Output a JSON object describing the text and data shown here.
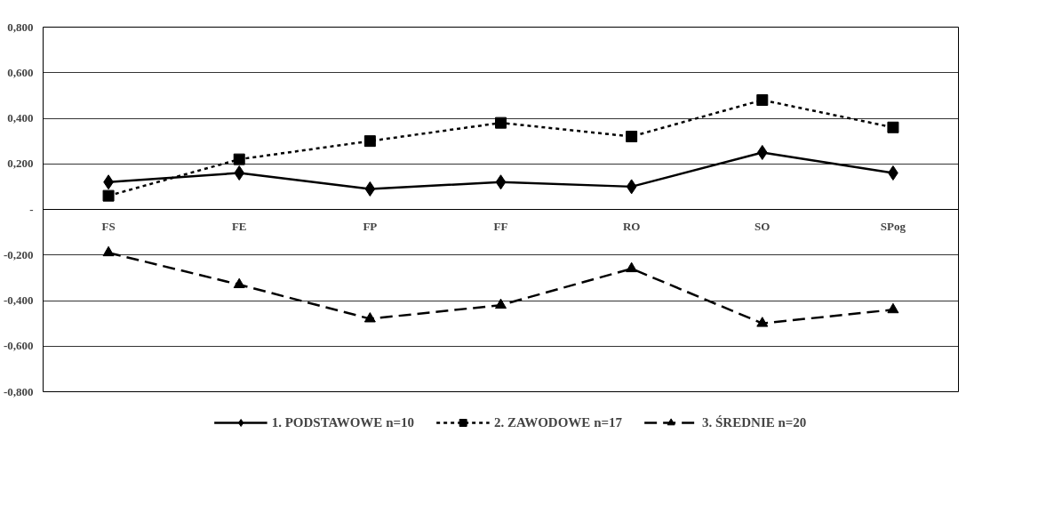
{
  "chart_data": {
    "type": "line",
    "categories": [
      "FS",
      "FE",
      "FP",
      "FF",
      "RO",
      "SO",
      "SPog"
    ],
    "series": [
      {
        "name": "1. PODSTAWOWE n=10",
        "color": "#000000",
        "marker": "diamond",
        "line_style": "solid",
        "values": [
          0.12,
          0.16,
          0.09,
          0.12,
          0.1,
          0.25,
          0.16
        ]
      },
      {
        "name": "2. ZAWODOWE n=17",
        "color": "#000000",
        "marker": "square",
        "line_style": "dotted",
        "values": [
          0.06,
          0.22,
          0.3,
          0.38,
          0.32,
          0.48,
          0.36
        ]
      },
      {
        "name": "3. ŚREDNIE n=20",
        "color": "#000000",
        "marker": "triangle",
        "line_style": "dashed",
        "values": [
          -0.19,
          -0.33,
          -0.48,
          -0.42,
          -0.26,
          -0.5,
          -0.44
        ]
      }
    ],
    "ylim": [
      -0.8,
      0.8
    ],
    "yticks": [
      {
        "value": -0.8,
        "label": "-0,800"
      },
      {
        "value": -0.6,
        "label": "-0,600"
      },
      {
        "value": -0.4,
        "label": "-0,400"
      },
      {
        "value": -0.2,
        "label": "-0,200"
      },
      {
        "value": 0,
        "label": "-"
      },
      {
        "value": 0.2,
        "label": "0,200"
      },
      {
        "value": 0.4,
        "label": "0,400"
      },
      {
        "value": 0.6,
        "label": "0,600"
      },
      {
        "value": 0.8,
        "label": "0,800"
      }
    ],
    "grid": "y",
    "legend": "bottom"
  }
}
